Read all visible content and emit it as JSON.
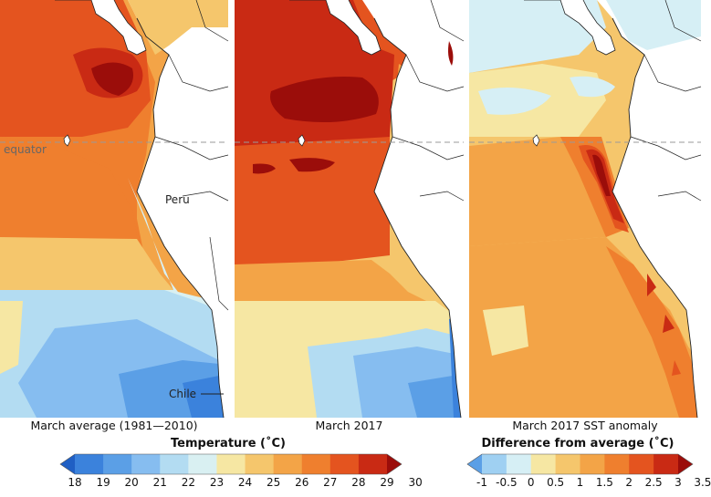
{
  "panels": {
    "average": {
      "caption": "March average (1981—2010)"
    },
    "march": {
      "caption": "March 2017"
    },
    "anomaly": {
      "caption": "March 2017 SST anomaly"
    }
  },
  "map_labels": {
    "equator": "equator",
    "peru": "Peru",
    "chile": "Chile"
  },
  "legend_temperature": {
    "title": "Temperature (˚C)",
    "ticks": [
      "18",
      "19",
      "20",
      "21",
      "22",
      "23",
      "24",
      "25",
      "26",
      "27",
      "28",
      "29",
      "30"
    ],
    "colors": [
      "#1f5fc4",
      "#3b82dc",
      "#5b9fe6",
      "#86bdf0",
      "#b3dcf2",
      "#d9f0f2",
      "#f6e7a3",
      "#f5c66c",
      "#f3a447",
      "#ef7f2e",
      "#e4541f",
      "#c92a14",
      "#9b0d0a"
    ]
  },
  "legend_anomaly": {
    "title": "Difference from average (˚C)",
    "ticks": [
      "-1",
      "-0.5",
      "0",
      "0.5",
      "1",
      "1.5",
      "2",
      "2.5",
      "3",
      "3.5"
    ],
    "colors": [
      "#5b9fe6",
      "#9fd0f2",
      "#d6eff5",
      "#f6e7a3",
      "#f5c66c",
      "#f3a447",
      "#ef7f2e",
      "#e4541f",
      "#c92a14",
      "#9b0d0a"
    ]
  },
  "colors": {
    "land": "#ffffff",
    "border": "#222222",
    "equator_line": "#9a9a9a"
  }
}
